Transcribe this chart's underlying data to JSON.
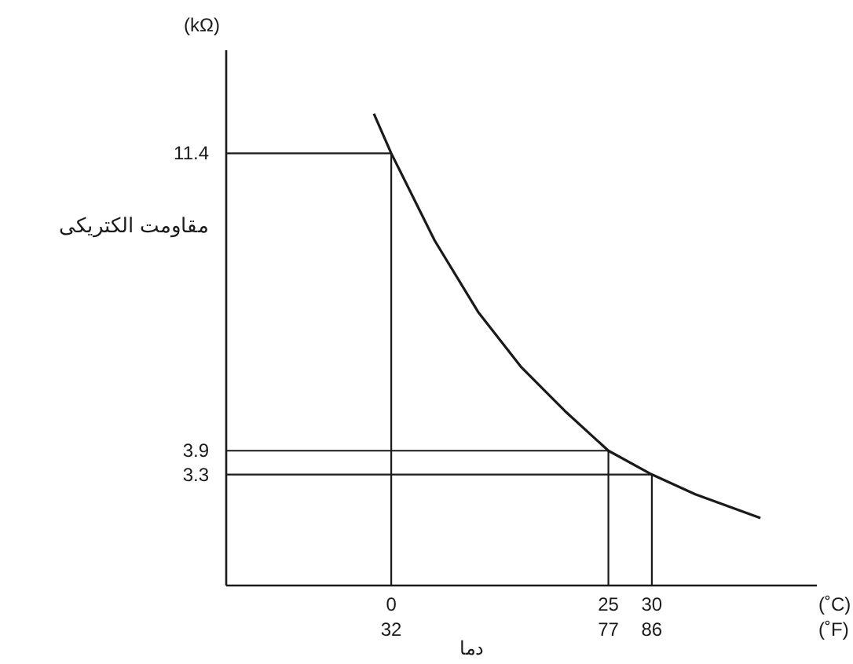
{
  "chart_data": {
    "type": "line",
    "x": [
      -2,
      0,
      5,
      10,
      15,
      20,
      25,
      30,
      35,
      42.5
    ],
    "series": [
      {
        "color": "#1a1a1a",
        "values": [
          12.4,
          11.4,
          9.2,
          7.4,
          6.0,
          4.9,
          3.9,
          3.3,
          2.8,
          2.2
        ]
      }
    ],
    "xlim": [
      -19,
      49
    ],
    "xticks": [
      0,
      25,
      30
    ],
    "x2lim": [
      -2.2,
      120.2
    ],
    "x2ticks": [
      32,
      77,
      86
    ],
    "ylim": [
      0.5,
      14
    ],
    "yticks": [
      3.3,
      3.9,
      11.4
    ],
    "xlabel": "(˚C)",
    "x2label": "(˚F)",
    "ylabel": "مقاومت الکتریکی",
    "annotations": [
      "(kΩ)",
      "دما"
    ],
    "ref_lines": [
      {
        "axis": "y",
        "value": 11.4
      },
      {
        "axis": "y",
        "value": 3.9
      },
      {
        "axis": "y",
        "value": 3.3
      },
      {
        "axis": "x",
        "value": 0
      },
      {
        "axis": "x",
        "value": 25
      },
      {
        "axis": "x",
        "value": 30
      }
    ]
  }
}
